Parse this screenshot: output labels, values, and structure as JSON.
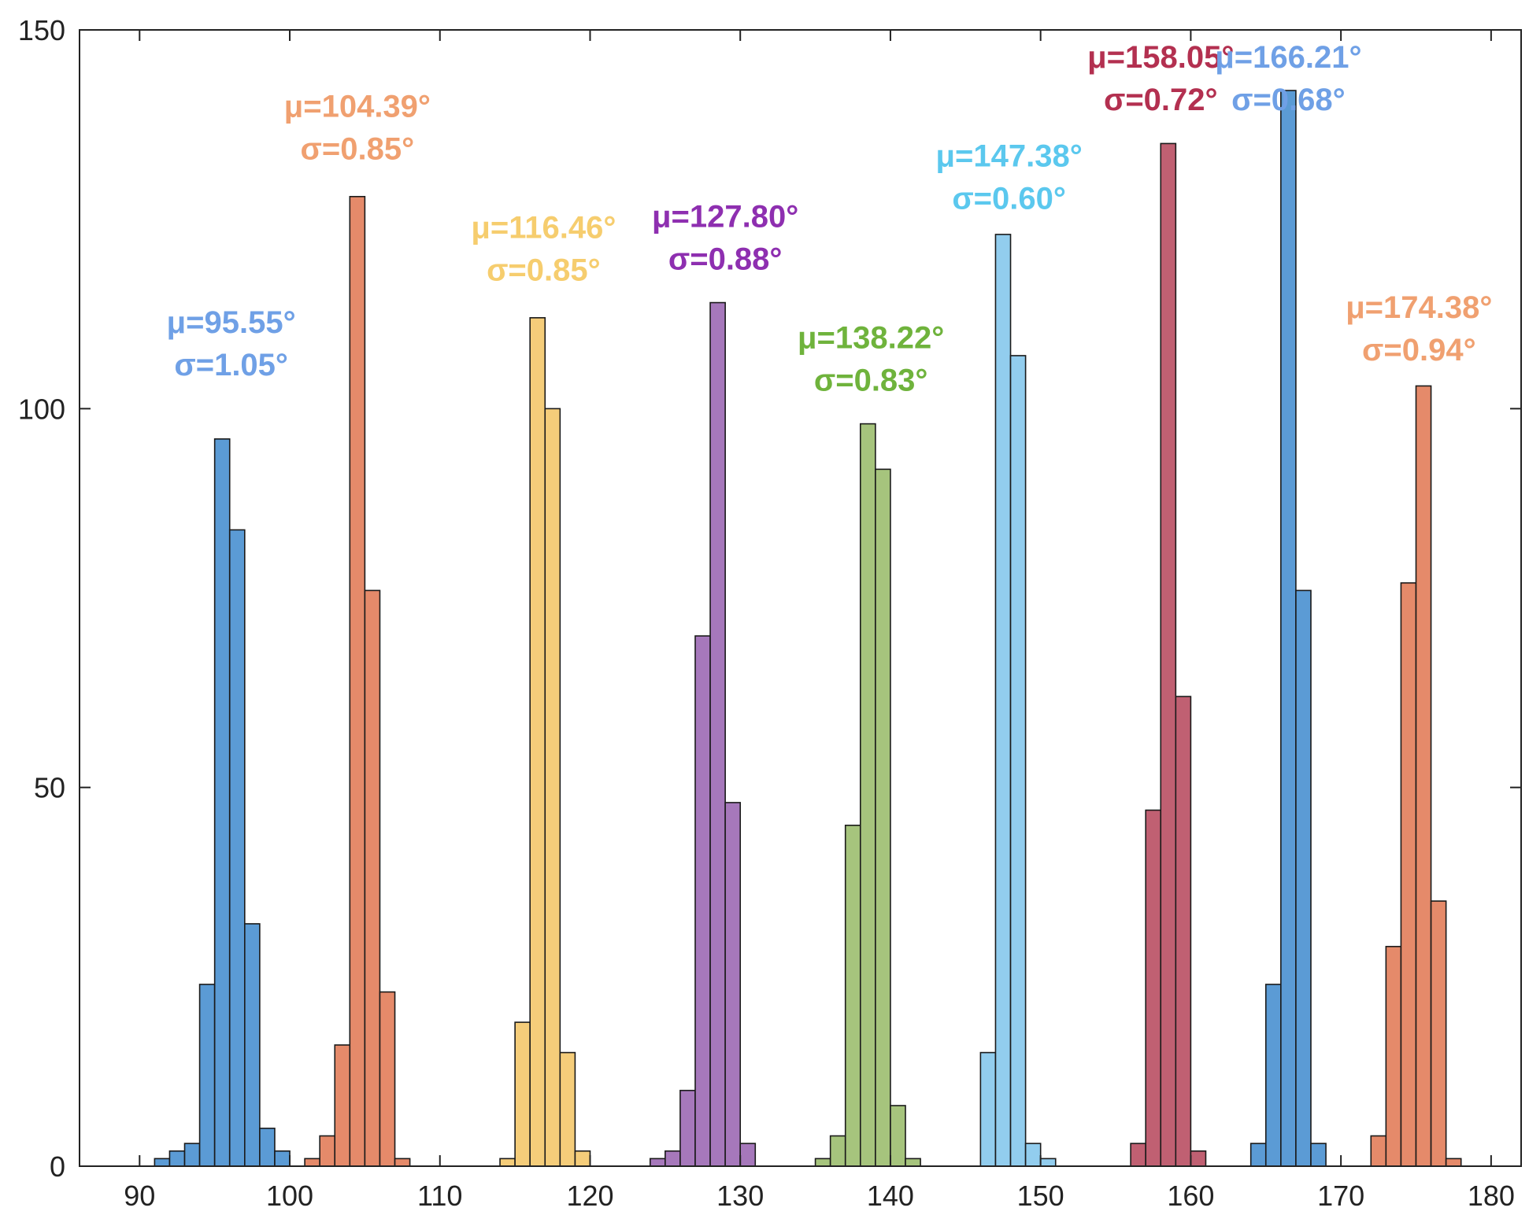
{
  "chart_data": {
    "type": "bar",
    "title": "",
    "xlabel": "",
    "ylabel": "",
    "xlim": [
      86,
      182
    ],
    "ylim": [
      0,
      150
    ],
    "x_ticks": [
      "90",
      "100",
      "110",
      "120",
      "130",
      "140",
      "150",
      "160",
      "170",
      "180"
    ],
    "y_ticks": [
      "0",
      "50",
      "100",
      "150"
    ],
    "bin_width": 1,
    "grid": false,
    "series": [
      {
        "name": "μ=95.55°",
        "color": "#5b9bd5",
        "label_color": "#6fa0e6",
        "mu": "μ=95.55°",
        "sigma": "σ=1.05°",
        "label_center": 96.1,
        "label_value": 110,
        "bins": [
          [
            91,
            1
          ],
          [
            92,
            2
          ],
          [
            93,
            3
          ],
          [
            94,
            24
          ],
          [
            95,
            96
          ],
          [
            96,
            84
          ],
          [
            97,
            32
          ],
          [
            98,
            5
          ],
          [
            99,
            2
          ]
        ]
      },
      {
        "name": "μ=104.39°",
        "color": "#e58a6a",
        "label_color": "#f0a070",
        "mu": "μ=104.39°",
        "sigma": "σ=0.85°",
        "label_center": 104.5,
        "label_value": 138.5,
        "bins": [
          [
            101,
            1
          ],
          [
            102,
            4
          ],
          [
            103,
            16
          ],
          [
            104,
            128
          ],
          [
            105,
            76
          ],
          [
            106,
            23
          ],
          [
            107,
            1
          ]
        ]
      },
      {
        "name": "μ=116.46°",
        "color": "#f5cd7a",
        "label_color": "#f6cd6e",
        "mu": "μ=116.46°",
        "sigma": "σ=0.85°",
        "label_center": 116.9,
        "label_value": 122.5,
        "bins": [
          [
            114,
            1
          ],
          [
            115,
            19
          ],
          [
            116,
            112
          ],
          [
            117,
            100
          ],
          [
            118,
            15
          ],
          [
            119,
            2
          ]
        ]
      },
      {
        "name": "μ=127.80°",
        "color": "#a678bb",
        "label_color": "#8e2fb0",
        "mu": "μ=127.80°",
        "sigma": "σ=0.88°",
        "label_center": 129.0,
        "label_value": 124,
        "bins": [
          [
            124,
            1
          ],
          [
            125,
            2
          ],
          [
            126,
            10
          ],
          [
            127,
            70
          ],
          [
            128,
            114
          ],
          [
            129,
            48
          ],
          [
            130,
            3
          ]
        ]
      },
      {
        "name": "μ=138.22°",
        "color": "#a6c47d",
        "label_color": "#6fb33c",
        "mu": "μ=138.22°",
        "sigma": "σ=0.83°",
        "label_center": 138.7,
        "label_value": 108,
        "bins": [
          [
            135,
            1
          ],
          [
            136,
            4
          ],
          [
            137,
            45
          ],
          [
            138,
            98
          ],
          [
            139,
            92
          ],
          [
            140,
            8
          ],
          [
            141,
            1
          ]
        ]
      },
      {
        "name": "μ=147.38°",
        "color": "#92cdee",
        "label_color": "#5bc8ee",
        "mu": "μ=147.38°",
        "sigma": "σ=0.60°",
        "label_center": 147.9,
        "label_value": 132,
        "bins": [
          [
            146,
            15
          ],
          [
            147,
            123
          ],
          [
            148,
            107
          ],
          [
            149,
            3
          ],
          [
            150,
            1
          ]
        ]
      },
      {
        "name": "μ=158.05°",
        "color": "#c06072",
        "label_color": "#b33050",
        "mu": "μ=158.05°",
        "sigma": "σ=0.72°",
        "label_center": 158.0,
        "label_value": 145,
        "bins": [
          [
            156,
            3
          ],
          [
            157,
            47
          ],
          [
            158,
            135
          ],
          [
            159,
            62
          ],
          [
            160,
            2
          ]
        ]
      },
      {
        "name": "μ=166.21°",
        "color": "#5b9bd5",
        "label_color": "#6fa0e6",
        "mu": "μ=166.21°",
        "sigma": "σ=0.68°",
        "label_center": 166.5,
        "label_value": 145,
        "bins": [
          [
            164,
            3
          ],
          [
            165,
            24
          ],
          [
            166,
            142
          ],
          [
            167,
            76
          ],
          [
            168,
            3
          ]
        ]
      },
      {
        "name": "μ=174.38°",
        "color": "#e58a6a",
        "label_color": "#f0a070",
        "mu": "μ=174.38°",
        "sigma": "σ=0.94°",
        "label_center": 175.2,
        "label_value": 112,
        "bins": [
          [
            172,
            4
          ],
          [
            173,
            29
          ],
          [
            174,
            77
          ],
          [
            175,
            103
          ],
          [
            176,
            35
          ],
          [
            177,
            1
          ]
        ]
      }
    ]
  }
}
